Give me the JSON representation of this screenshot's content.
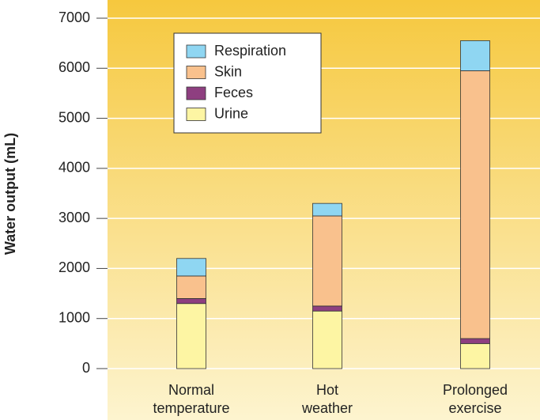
{
  "chart_data": {
    "type": "stacked-bar",
    "y_label": "Water output (mL)",
    "categories": [
      "Normal temperature",
      "Hot weather",
      "Prolonged exercise"
    ],
    "series": [
      {
        "name": "Urine",
        "color": "#fdf5a3",
        "values": [
          1300,
          1150,
          500
        ]
      },
      {
        "name": "Feces",
        "color": "#8e3f80",
        "values": [
          100,
          100,
          100
        ]
      },
      {
        "name": "Skin",
        "color": "#f9c18d",
        "values": [
          450,
          1800,
          5350
        ]
      },
      {
        "name": "Respiration",
        "color": "#8fd6f2",
        "values": [
          350,
          250,
          600
        ]
      }
    ],
    "ylim": [
      0,
      7000
    ],
    "yticks": [
      0,
      1000,
      2000,
      3000,
      4000,
      5000,
      6000,
      7000
    ],
    "grid": true,
    "legend_position": "upper-left"
  }
}
